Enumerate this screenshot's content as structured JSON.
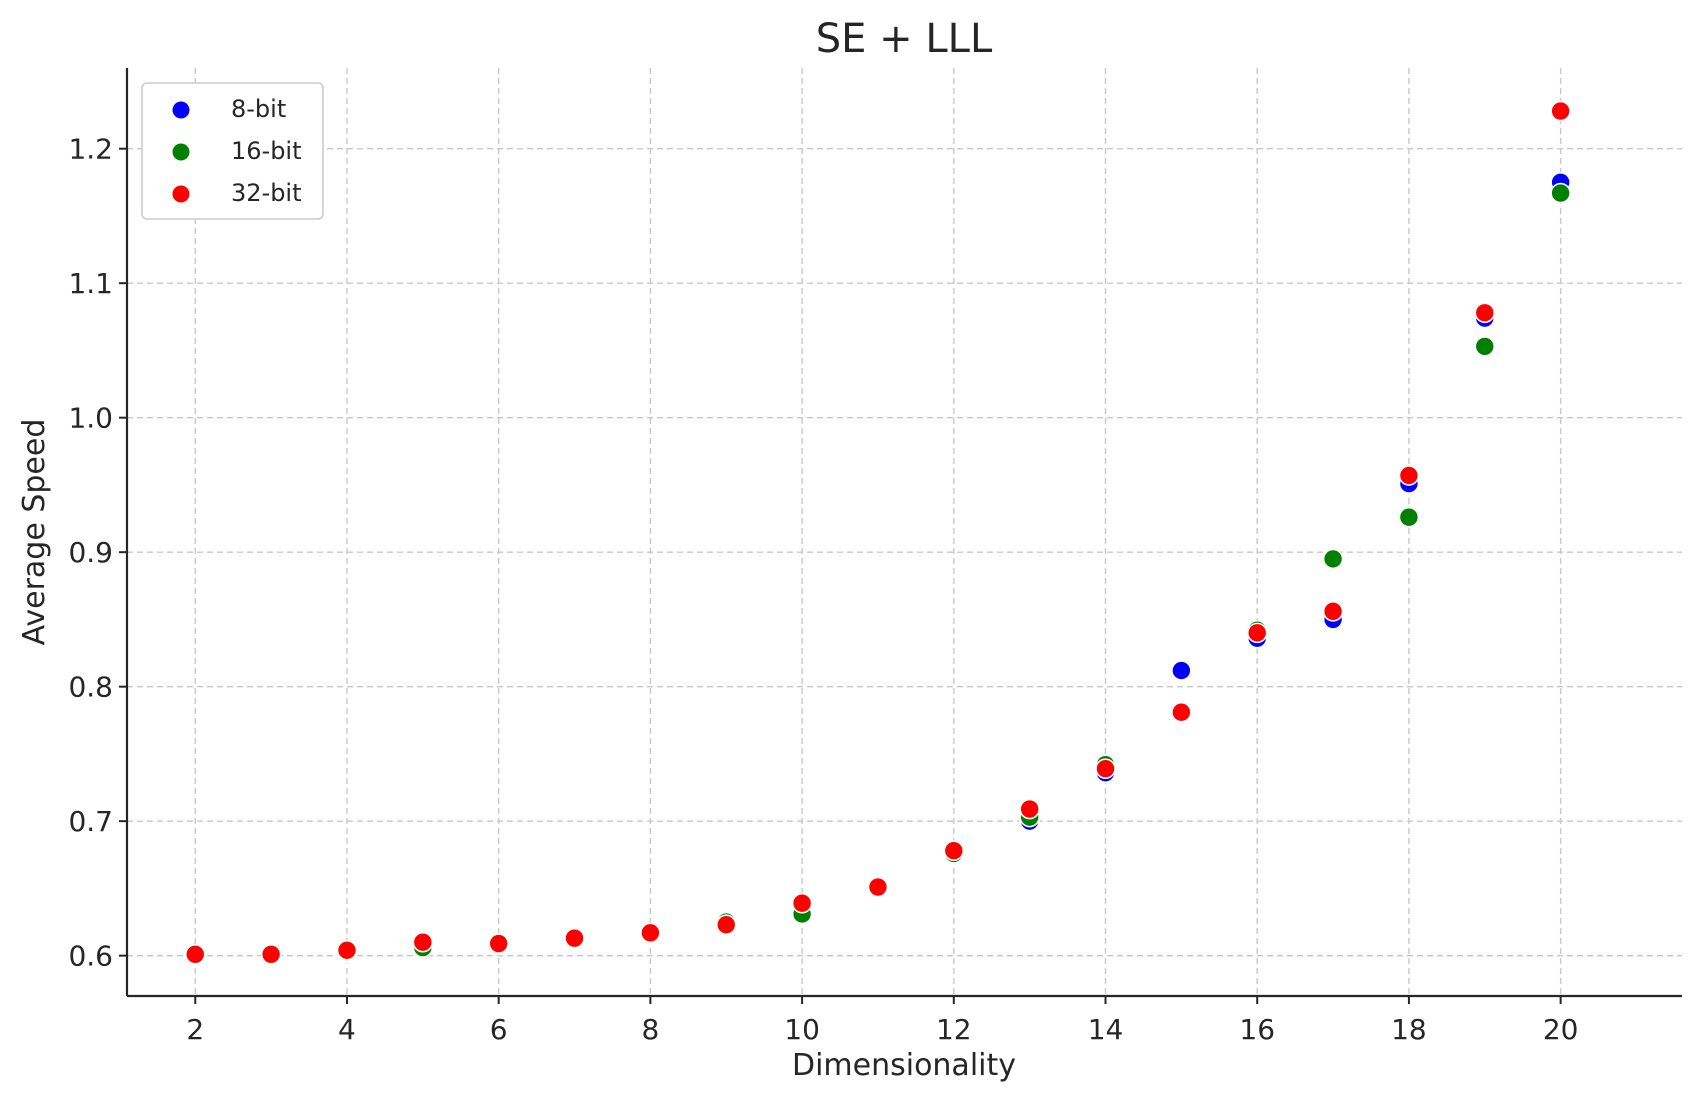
{
  "chart_data": {
    "type": "scatter",
    "title": "SE + LLL",
    "xlabel": "Dimensionality",
    "ylabel": "Average Speed",
    "xlim": [
      1.1,
      21.6
    ],
    "ylim": [
      0.57,
      1.26
    ],
    "xticks": [
      2,
      4,
      6,
      8,
      10,
      12,
      14,
      16,
      18,
      20
    ],
    "yticks": [
      0.6,
      0.7,
      0.8,
      0.9,
      1.0,
      1.1,
      1.2
    ],
    "ytick_labels": [
      "0.6",
      "0.7",
      "0.8",
      "0.9",
      "1.0",
      "1.1",
      "1.2"
    ],
    "grid": true,
    "legend_position": "top-left",
    "x": [
      2,
      3,
      4,
      5,
      6,
      7,
      8,
      9,
      10,
      11,
      12,
      13,
      14,
      15,
      16,
      17,
      18,
      19,
      20
    ],
    "series": [
      {
        "name": "8-bit",
        "color": "#0000ff",
        "values": [
          0.601,
          0.601,
          0.602,
          0.608,
          0.609,
          0.613,
          0.616,
          0.624,
          0.633,
          0.649,
          0.676,
          0.7,
          0.736,
          0.812,
          0.836,
          0.85,
          0.951,
          1.074,
          1.175
        ]
      },
      {
        "name": "16-bit",
        "color": "#008000",
        "values": [
          0.601,
          0.601,
          0.603,
          0.606,
          0.609,
          0.613,
          0.616,
          0.625,
          0.631,
          0.65,
          0.676,
          0.703,
          0.742,
          0.781,
          0.842,
          0.895,
          0.926,
          1.053,
          1.167
        ]
      },
      {
        "name": "32-bit",
        "color": "#ff0000",
        "values": [
          0.601,
          0.601,
          0.604,
          0.61,
          0.609,
          0.613,
          0.617,
          0.623,
          0.639,
          0.651,
          0.678,
          0.709,
          0.739,
          0.781,
          0.84,
          0.856,
          0.957,
          1.078,
          1.228
        ]
      }
    ]
  }
}
